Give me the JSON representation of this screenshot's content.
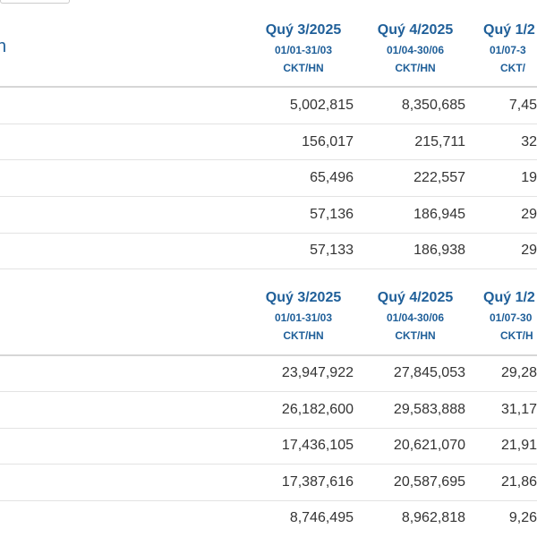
{
  "page": {
    "section_label": "h"
  },
  "table1": {
    "headers": [
      {
        "quarter": "Quý 3/2025",
        "range": "01/01-31/03",
        "type": "CKT/HN"
      },
      {
        "quarter": "Quý 4/2025",
        "range": "01/04-30/06",
        "type": "CKT/HN"
      },
      {
        "quarter": "Quý 1/2",
        "range": "01/07-3",
        "type": "CKT/"
      }
    ],
    "rows": [
      [
        "5,002,815",
        "8,350,685",
        "7,45"
      ],
      [
        "156,017",
        "215,711",
        "32"
      ],
      [
        "65,496",
        "222,557",
        "19"
      ],
      [
        "57,136",
        "186,945",
        "29"
      ],
      [
        "57,133",
        "186,938",
        "29"
      ]
    ]
  },
  "table2": {
    "headers": [
      {
        "quarter": "Quý 3/2025",
        "range": "01/01-31/03",
        "type": "CKT/HN"
      },
      {
        "quarter": "Quý 4/2025",
        "range": "01/04-30/06",
        "type": "CKT/HN"
      },
      {
        "quarter": "Quý 1/2",
        "range": "01/07-30",
        "type": "CKT/H"
      }
    ],
    "rows": [
      [
        "23,947,922",
        "27,845,053",
        "29,28"
      ],
      [
        "26,182,600",
        "29,583,888",
        "31,17"
      ],
      [
        "17,436,105",
        "20,621,070",
        "21,91"
      ],
      [
        "17,387,616",
        "20,587,695",
        "21,86"
      ],
      [
        "8,746,495",
        "8,962,818",
        "9,26"
      ]
    ]
  }
}
